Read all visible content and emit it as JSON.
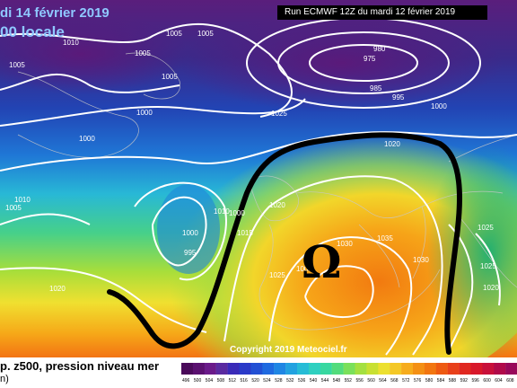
{
  "title": {
    "date": "di 14 février 2019",
    "time": "00 locale"
  },
  "run_info": "Run ECMWF 12Z du mardi 12 février 2019",
  "copyright": "Copyright 2019 Meteociel.fr",
  "legend": {
    "label": "p. z500, pression niveau mer",
    "unit": "n)"
  },
  "symbol": "Ω",
  "isobar_labels": [
    "1010",
    "1005",
    "1005",
    "1005",
    "1005",
    "1005",
    "1000",
    "1000",
    "980",
    "975",
    "985",
    "995",
    "1000",
    "1025",
    "1020",
    "1010",
    "1010",
    "1005",
    "1015",
    "1000",
    "995",
    "1020",
    "1025",
    "1035",
    "1030",
    "1030",
    "1025",
    "1020",
    "1025",
    "1020",
    "1000",
    "1005"
  ],
  "legend_values": [
    "496",
    "500",
    "504",
    "508",
    "512",
    "516",
    "520",
    "524",
    "528",
    "532",
    "536",
    "540",
    "544",
    "548",
    "552",
    "556",
    "560",
    "564",
    "568",
    "572",
    "576",
    "580",
    "584",
    "588",
    "592",
    "596",
    "600",
    "604",
    "608"
  ],
  "colors": {
    "low_height": "#4a1a7a",
    "mid_height": "#2ec4d0",
    "high_height": "#f07a10",
    "ridge_line": "#000000",
    "isobars": "#ffffff"
  }
}
